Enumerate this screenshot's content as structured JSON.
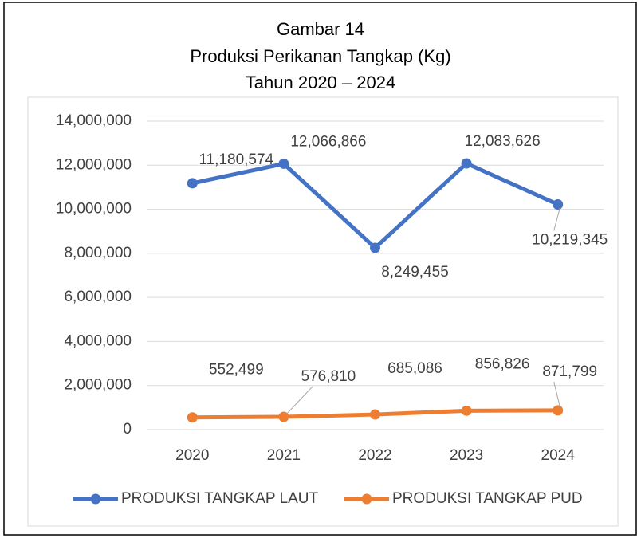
{
  "chart_data": {
    "type": "line",
    "title": "Gambar 14",
    "subtitle": [
      "Produksi Perikanan Tangkap (Kg)",
      "Tahun 2020 – 2024"
    ],
    "categories": [
      "2020",
      "2021",
      "2022",
      "2023",
      "2024"
    ],
    "series": [
      {
        "name": "PRODUKSI TANGKAP LAUT",
        "color": "#4472c4",
        "values": [
          11180574,
          12066866,
          8249455,
          12083626,
          10219345
        ],
        "value_labels": [
          "11,180,574",
          "12,066,866",
          "8,249,455",
          "12,083,626",
          "10,219,345"
        ]
      },
      {
        "name": "PRODUKSI TANGKAP PUD",
        "color": "#ed7d31",
        "values": [
          552499,
          576810,
          685086,
          856826,
          871799
        ],
        "value_labels": [
          "552,499",
          "576,810",
          "685,086",
          "856,826",
          "871,799"
        ]
      }
    ],
    "ylim": [
      0,
      14000000
    ],
    "yticks": [
      0,
      {
        "value": 2000000,
        "label": "2,000,000"
      },
      {
        "value": 4000000,
        "label": "4,000,000"
      },
      {
        "value": 6000000,
        "label": "6,000,000"
      },
      {
        "value": 8000000,
        "label": "8,000,000"
      },
      {
        "value": 10000000,
        "label": "10,000,000"
      },
      {
        "value": 12000000,
        "label": "12,000,000"
      },
      {
        "value": 14000000,
        "label": "14,000,000"
      }
    ],
    "grid": true,
    "legend": "bottom"
  }
}
